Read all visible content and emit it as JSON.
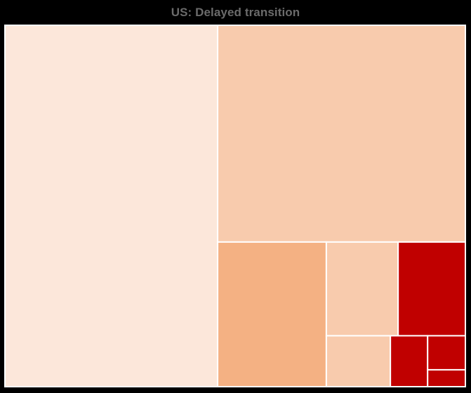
{
  "chart_data": {
    "type": "treemap",
    "title": "US: Delayed transition",
    "colors": {
      "lightest": "#fce7da",
      "light": "#f8cbad",
      "medium": "#f4b183",
      "dark": "#c00000",
      "border": "#ffffff",
      "background": "#000000"
    },
    "items": [
      {
        "value": 153190,
        "color_key": "lightest"
      },
      {
        "value": 106980,
        "color_key": "light"
      },
      {
        "value": 31320,
        "color_key": "medium"
      },
      {
        "value": 13410,
        "color_key": "light"
      },
      {
        "value": 12560,
        "color_key": "dark"
      },
      {
        "value": 6500,
        "color_key": "light"
      },
      {
        "value": 3780,
        "color_key": "dark"
      },
      {
        "value": 2560,
        "color_key": "dark"
      },
      {
        "value": 1270,
        "color_key": "dark"
      }
    ]
  }
}
